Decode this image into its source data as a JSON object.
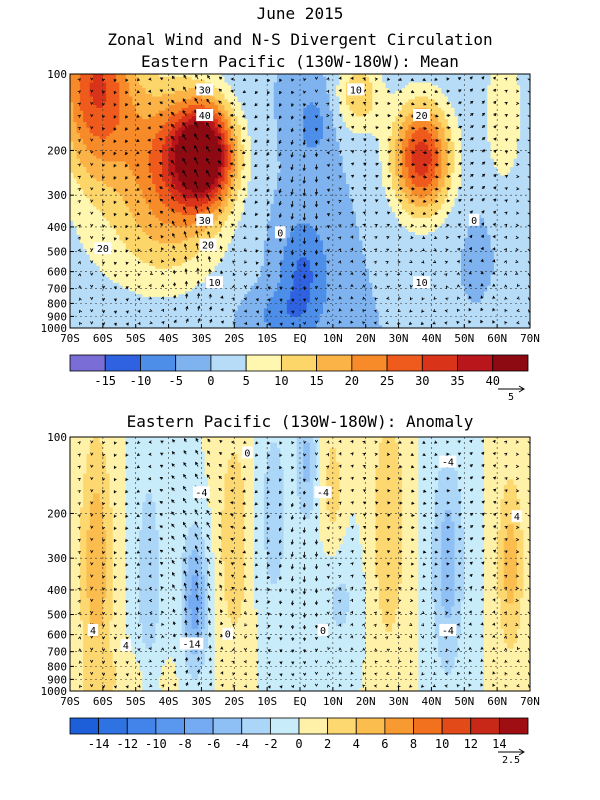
{
  "figure": {
    "title_lines": [
      "June 2015",
      "Zonal Wind and N-S Divergent Circulation"
    ]
  },
  "chart_data": [
    {
      "type": "heatmap",
      "title": "Eastern Pacific (130W-180W): Mean",
      "x_ticks": [
        "70S",
        "60S",
        "50S",
        "40S",
        "30S",
        "20S",
        "10S",
        "EQ",
        "10N",
        "20N",
        "30N",
        "40N",
        "50N",
        "60N",
        "70N"
      ],
      "x_values": [
        -70,
        -60,
        -50,
        -40,
        -30,
        -20,
        -10,
        0,
        10,
        20,
        30,
        40,
        50,
        60,
        70
      ],
      "y_ticks": [
        "100",
        "200",
        "300",
        "400",
        "500",
        "600",
        "700",
        "800",
        "900",
        "1000"
      ],
      "y_values": [
        100,
        200,
        300,
        400,
        500,
        600,
        700,
        800,
        900,
        1000
      ],
      "y_scale": "log",
      "ylim": [
        100,
        1000
      ],
      "xlim": [
        -70,
        70
      ],
      "colorbar": {
        "levels": [
          -20,
          -15,
          -10,
          -5,
          0,
          5,
          10,
          15,
          20,
          25,
          30,
          35,
          40,
          45
        ],
        "labels": [
          "-15",
          "-10",
          "-5",
          "0",
          "5",
          "10",
          "15",
          "20",
          "25",
          "30",
          "35",
          "40"
        ],
        "label_values": [
          -15,
          -10,
          -5,
          0,
          5,
          10,
          15,
          20,
          25,
          30,
          35,
          40
        ],
        "colors": [
          "#7a6ed6",
          "#2e62e0",
          "#4d8ee8",
          "#7fb3ef",
          "#b6dcf7",
          "#fff7b0",
          "#fdd66a",
          "#fbb347",
          "#f78b29",
          "#ef5b1c",
          "#d9331a",
          "#b8161a",
          "#8e0a12"
        ],
        "vector_ref": "5"
      },
      "contour_labels": [
        {
          "text": "30",
          "lat": -29,
          "p": 115
        },
        {
          "text": "40",
          "lat": -29,
          "p": 145
        },
        {
          "text": "30",
          "lat": -29,
          "p": 375
        },
        {
          "text": "20",
          "lat": -28,
          "p": 470
        },
        {
          "text": "20",
          "lat": -60,
          "p": 485
        },
        {
          "text": "10",
          "lat": -26,
          "p": 660
        },
        {
          "text": "0",
          "lat": -6,
          "p": 420
        },
        {
          "text": "10",
          "lat": 17,
          "p": 115
        },
        {
          "text": "20",
          "lat": 37,
          "p": 145
        },
        {
          "text": "0",
          "lat": 53,
          "p": 375
        },
        {
          "text": "10",
          "lat": 37,
          "p": 660
        }
      ]
    },
    {
      "type": "heatmap",
      "title": "Eastern Pacific (130W-180W): Anomaly",
      "x_ticks": [
        "70S",
        "60S",
        "50S",
        "40S",
        "30S",
        "20S",
        "10S",
        "EQ",
        "10N",
        "20N",
        "30N",
        "40N",
        "50N",
        "60N",
        "70N"
      ],
      "x_values": [
        -70,
        -60,
        -50,
        -40,
        -30,
        -20,
        -10,
        0,
        10,
        20,
        30,
        40,
        50,
        60,
        70
      ],
      "y_ticks": [
        "100",
        "200",
        "300",
        "400",
        "500",
        "600",
        "700",
        "800",
        "900",
        "1000"
      ],
      "y_values": [
        100,
        200,
        300,
        400,
        500,
        600,
        700,
        800,
        900,
        1000
      ],
      "y_scale": "log",
      "ylim": [
        100,
        1000
      ],
      "xlim": [
        -70,
        70
      ],
      "colorbar": {
        "levels": [
          -16,
          -14,
          -12,
          -10,
          -8,
          -6,
          -4,
          -2,
          0,
          2,
          4,
          6,
          8,
          10,
          12,
          14,
          16
        ],
        "labels": [
          "-14",
          "-12",
          "-10",
          "-8",
          "-6",
          "-4",
          "-2",
          "0",
          "2",
          "4",
          "6",
          "8",
          "10",
          "12",
          "14"
        ],
        "label_values": [
          -14,
          -12,
          -10,
          -8,
          -6,
          -4,
          -2,
          0,
          2,
          4,
          6,
          8,
          10,
          12,
          14
        ],
        "colors": [
          "#1d5fd8",
          "#2f72e2",
          "#4384ea",
          "#5a97ee",
          "#74abf2",
          "#8fc0f5",
          "#acd6f8",
          "#c9ecfa",
          "#fff2a8",
          "#fdd870",
          "#fbbd4e",
          "#f89a32",
          "#f2711f",
          "#e24a1a",
          "#c72818",
          "#9e0e12"
        ],
        "vector_ref": "2.5"
      },
      "contour_labels": [
        {
          "text": "0",
          "lat": -16,
          "p": 115
        },
        {
          "text": "-4",
          "lat": -30,
          "p": 165
        },
        {
          "text": "-4",
          "lat": 7,
          "p": 165
        },
        {
          "text": "-4",
          "lat": 45,
          "p": 125
        },
        {
          "text": "4",
          "lat": -63,
          "p": 575
        },
        {
          "text": "4",
          "lat": -53,
          "p": 660
        },
        {
          "text": "-14",
          "lat": -33,
          "p": 650
        },
        {
          "text": "0",
          "lat": -22,
          "p": 595
        },
        {
          "text": "0",
          "lat": 7,
          "p": 575
        },
        {
          "text": "-4",
          "lat": 45,
          "p": 575
        },
        {
          "text": "4",
          "lat": 66,
          "p": 205
        }
      ]
    }
  ]
}
